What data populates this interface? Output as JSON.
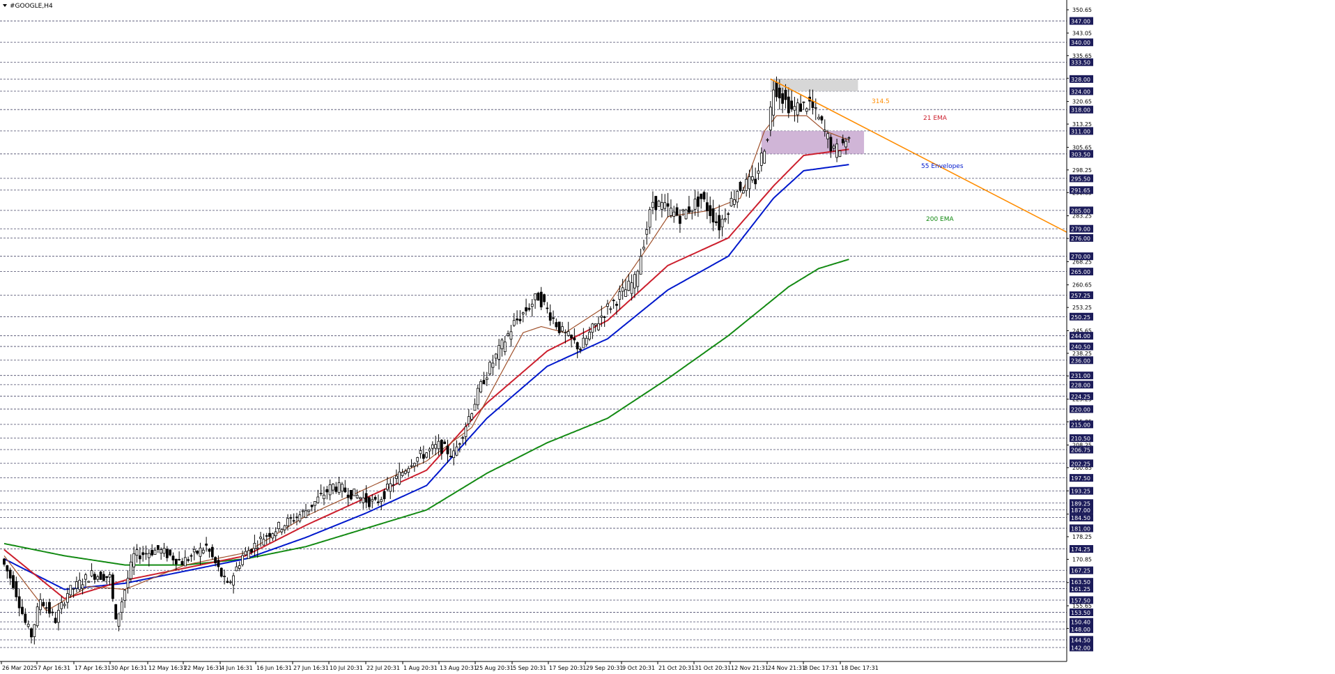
{
  "window": {
    "title": "#GOOGLE,H4"
  },
  "colors": {
    "ema21": "#cc1f2d",
    "ema_fast": "#a0522d",
    "envelope55": "#0018cc",
    "ema200": "#138a13",
    "trendline": "#ff8c00",
    "zone_top": "#d0d0d0",
    "zone_mid": "#c8a8d0",
    "price_tag_bg": "#1c1c5a",
    "candle": "#000000"
  },
  "annotations": {
    "trendline_label": "314.5",
    "ema21_label": "21 EMA",
    "envelope_label": "55 Envelopes",
    "ema200_label": "200 EMA"
  },
  "chart_data": {
    "type": "candlestick",
    "symbol": "#GOOGLE",
    "timeframe": "H4",
    "ylim": [
      138,
      351
    ],
    "x_labels": [
      "26 Mar 2025",
      "7 Apr 16:31",
      "17 Apr 16:31",
      "30 Apr 16:31",
      "12 May 16:31",
      "22 May 16:31",
      "4 Jun 16:31",
      "16 Jun 16:31",
      "27 Jun 16:31",
      "10 Jul 20:31",
      "22 Jul 20:31",
      "1 Aug 20:31",
      "13 Aug 20:31",
      "25 Aug 20:31",
      "5 Sep 20:31",
      "17 Sep 20:31",
      "29 Sep 20:31",
      "9 Oct 20:31",
      "21 Oct 20:31",
      "31 Oct 20:31",
      "12 Nov 21:31",
      "24 Nov 21:31",
      "8 Dec 17:31",
      "18 Dec 17:31"
    ],
    "y_tick_labels": [
      "350.65",
      "343.05",
      "335.65",
      "328.25",
      "320.65",
      "313.25",
      "305.65",
      "298.25",
      "290.85",
      "283.25",
      "275.85",
      "268.25",
      "260.65",
      "253.25",
      "245.65",
      "238.25",
      "230.85",
      "223.25",
      "215.85",
      "208.25",
      "200.85",
      "193.25",
      "185.65",
      "178.25",
      "170.85",
      "163.25",
      "155.65",
      "148.25"
    ],
    "price_levels": [
      "347.00",
      "340.00",
      "333.50",
      "328.00",
      "324.00",
      "318.00",
      "311.00",
      "303.50",
      "295.50",
      "291.65",
      "285.00",
      "279.00",
      "276.00",
      "270.00",
      "265.00",
      "257.25",
      "250.25",
      "244.00",
      "240.50",
      "236.00",
      "231.00",
      "228.00",
      "224.25",
      "220.00",
      "215.00",
      "210.50",
      "206.75",
      "202.25",
      "197.50",
      "193.25",
      "189.25",
      "187.00",
      "184.50",
      "181.00",
      "174.25",
      "167.25",
      "163.50",
      "161.25",
      "157.50",
      "153.50",
      "150.40",
      "148.00",
      "144.50",
      "142.00"
    ],
    "price_path_anchors": [
      [
        0,
        171
      ],
      [
        4,
        163
      ],
      [
        8,
        150
      ],
      [
        10,
        146
      ],
      [
        13,
        158
      ],
      [
        18,
        151
      ],
      [
        22,
        160
      ],
      [
        30,
        166
      ],
      [
        36,
        165
      ],
      [
        38,
        150
      ],
      [
        44,
        172
      ],
      [
        52,
        174
      ],
      [
        60,
        170
      ],
      [
        68,
        175
      ],
      [
        75,
        162
      ],
      [
        80,
        172
      ],
      [
        88,
        179
      ],
      [
        100,
        186
      ],
      [
        110,
        195
      ],
      [
        124,
        189
      ],
      [
        136,
        203
      ],
      [
        145,
        208
      ],
      [
        150,
        205
      ],
      [
        160,
        230
      ],
      [
        170,
        248
      ],
      [
        178,
        257
      ],
      [
        186,
        245
      ],
      [
        192,
        240
      ],
      [
        200,
        252
      ],
      [
        210,
        262
      ],
      [
        216,
        288
      ],
      [
        225,
        283
      ],
      [
        232,
        289
      ],
      [
        238,
        280
      ],
      [
        244,
        292
      ],
      [
        250,
        295
      ],
      [
        254,
        310
      ],
      [
        256,
        326
      ],
      [
        262,
        318
      ],
      [
        268,
        320
      ],
      [
        272,
        313
      ],
      [
        276,
        304
      ],
      [
        280,
        308
      ]
    ],
    "ema21_anchors": [
      [
        0,
        174
      ],
      [
        20,
        158
      ],
      [
        40,
        164
      ],
      [
        60,
        168
      ],
      [
        80,
        172
      ],
      [
        100,
        182
      ],
      [
        120,
        191
      ],
      [
        140,
        200
      ],
      [
        160,
        222
      ],
      [
        180,
        239
      ],
      [
        200,
        249
      ],
      [
        220,
        267
      ],
      [
        240,
        276
      ],
      [
        255,
        293
      ],
      [
        265,
        303
      ],
      [
        280,
        305
      ]
    ],
    "ema_fast_anchors": [
      [
        0,
        172
      ],
      [
        14,
        154
      ],
      [
        28,
        162
      ],
      [
        40,
        161
      ],
      [
        60,
        169
      ],
      [
        80,
        173
      ],
      [
        100,
        185
      ],
      [
        120,
        194
      ],
      [
        140,
        203
      ],
      [
        155,
        214
      ],
      [
        172,
        245
      ],
      [
        178,
        247
      ],
      [
        186,
        245
      ],
      [
        200,
        254
      ],
      [
        214,
        274
      ],
      [
        220,
        283
      ],
      [
        234,
        285
      ],
      [
        244,
        289
      ],
      [
        252,
        311
      ],
      [
        256,
        316
      ],
      [
        266,
        316
      ],
      [
        272,
        311
      ],
      [
        280,
        308
      ]
    ],
    "envelope55_anchors": [
      [
        0,
        171
      ],
      [
        20,
        161
      ],
      [
        40,
        163
      ],
      [
        60,
        167
      ],
      [
        80,
        171
      ],
      [
        100,
        178
      ],
      [
        120,
        186
      ],
      [
        140,
        195
      ],
      [
        160,
        217
      ],
      [
        180,
        234
      ],
      [
        200,
        243
      ],
      [
        220,
        259
      ],
      [
        240,
        270
      ],
      [
        255,
        289
      ],
      [
        265,
        298
      ],
      [
        280,
        300
      ]
    ],
    "ema200_anchors": [
      [
        0,
        176
      ],
      [
        20,
        172
      ],
      [
        40,
        169
      ],
      [
        60,
        169
      ],
      [
        80,
        171
      ],
      [
        100,
        175
      ],
      [
        120,
        181
      ],
      [
        140,
        187
      ],
      [
        160,
        199
      ],
      [
        180,
        209
      ],
      [
        200,
        217
      ],
      [
        220,
        230
      ],
      [
        240,
        244
      ],
      [
        260,
        260
      ],
      [
        270,
        266
      ],
      [
        280,
        269
      ]
    ],
    "trendline": [
      [
        254,
        328
      ],
      [
        350,
        279
      ]
    ],
    "zones": [
      {
        "x": [
          254,
          283
        ],
        "y": [
          324,
          328
        ]
      },
      {
        "x": [
          251,
          285
        ],
        "y": [
          303.5,
          311
        ]
      }
    ]
  }
}
